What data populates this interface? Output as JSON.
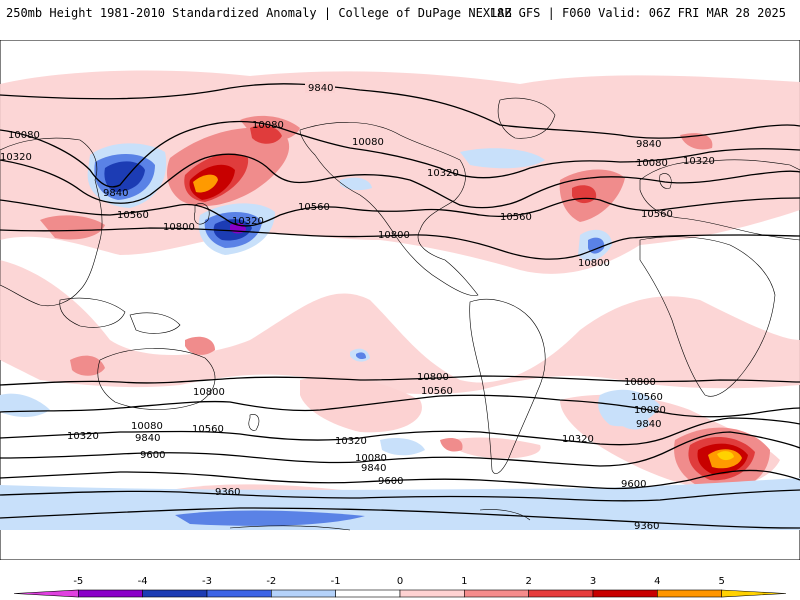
{
  "header": {
    "left": "250mb Height 1981-2010 Standardized Anomaly | College of DuPage NEXLAB",
    "right": "18Z GFS | F060 Valid: 06Z FRI MAR 28 2025"
  },
  "contour_labels": {
    "c9840_top": "9840",
    "c10080_nw": "10080",
    "c10320_nw": "10320",
    "c9840_pac": "9840",
    "c10080_pac": "10080",
    "c10560_pac": "10560",
    "c10320_pac": "10320",
    "c10800_pac": "10800",
    "c10560_cpac": "10560",
    "c10080_na": "10080",
    "c10320_na": "10320",
    "c10800_na": "10800",
    "c10560_atl": "10560",
    "c9840_eu": "9840",
    "c10080_eu": "10080",
    "c10320_eu": "10320",
    "c10560_af": "10560",
    "c10800_af": "10800",
    "s10800_w": "10800",
    "s10560_w": "10560",
    "s10320_w": "10320",
    "s10080_w": "10080",
    "s9840_w": "9840",
    "s9600_w": "9600",
    "s9360_w": "9360",
    "s10800_m": "10800",
    "s10560_m": "10560",
    "s10320_m": "10320",
    "s10080_m": "10080",
    "s9840_m": "9840",
    "s9600_m": "9600",
    "s10800_e": "10800",
    "s10560_e": "10560",
    "s10080_e": "10080",
    "s9840_e": "9840",
    "s10320_e": "10320",
    "s9600_e": "9600",
    "s9360_e": "9360"
  },
  "colorbar": {
    "ticks": [
      "-5",
      "-4",
      "-3",
      "-2",
      "-1",
      "0",
      "1",
      "2",
      "3",
      "4",
      "5"
    ],
    "colors": [
      "#e040e0",
      "#8a00c8",
      "#1c3cb4",
      "#3c64e6",
      "#b4d2fa",
      "#ffffff",
      "#ffd2d2",
      "#f58c8c",
      "#e63c3c",
      "#c80000",
      "#ff9600",
      "#ffd200"
    ]
  },
  "colors": {
    "neg1": "#c8e0fa",
    "neg2": "#5a82e6",
    "neg3": "#1c3cb4",
    "neg4": "#8a00c8",
    "pos1": "#fcd2d2",
    "pos2": "#f08c8c",
    "pos3": "#e03c3c",
    "pos4": "#c80000",
    "pos5": "#ff9a00"
  }
}
